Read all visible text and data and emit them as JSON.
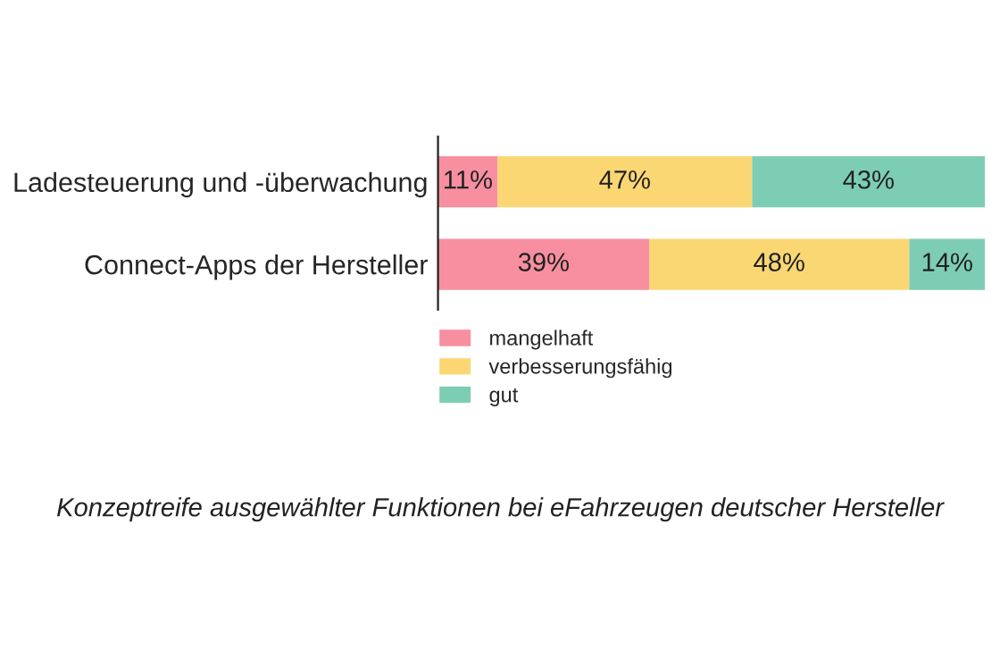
{
  "chart_data": {
    "type": "bar",
    "orientation": "horizontal",
    "stacked": true,
    "title": "Konzeptreife ausgewählter Funktionen bei eFahrzeugen deutscher Hersteller",
    "categories": [
      "Ladesteuerung und -überwachung",
      "Connect-Apps der Hersteller"
    ],
    "series": [
      {
        "name": "mangelhaft",
        "color": "#f78fa0",
        "values": [
          11,
          39
        ],
        "value_labels": [
          "11%",
          "39%"
        ]
      },
      {
        "name": "verbesserungsfähig",
        "color": "#fbd774",
        "values": [
          47,
          48
        ],
        "value_labels": [
          "47%",
          "48%"
        ]
      },
      {
        "name": "gut",
        "color": "#7dcdb4",
        "values": [
          43,
          14
        ],
        "value_labels": [
          "43%",
          "14%"
        ]
      }
    ],
    "legend": "bottom",
    "grid": false
  }
}
